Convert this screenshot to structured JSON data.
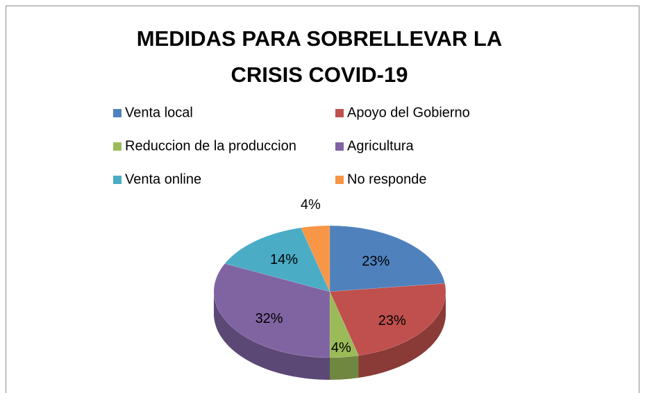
{
  "chart_data": {
    "type": "pie",
    "title": "MEDIDAS PARA SOBRELLEVAR LA CRISIS COVID-19",
    "categories": [
      "Venta local",
      "Apoyo del Gobierno",
      "Reduccion de la produccion",
      "Agricultura",
      "Venta online",
      "No responde"
    ],
    "values": [
      23,
      23,
      4,
      32,
      14,
      4
    ],
    "value_labels": [
      "23%",
      "23%",
      "4%",
      "32%",
      "14%",
      "4%"
    ],
    "colors": [
      "#4f81bd",
      "#c0504d",
      "#9bbb59",
      "#8064a2",
      "#4bacc6",
      "#f79646"
    ],
    "legend": "top"
  }
}
